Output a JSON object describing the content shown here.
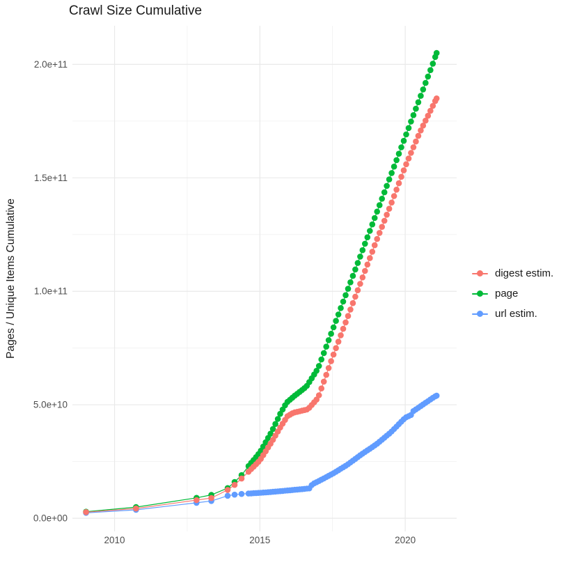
{
  "title": "Crawl Size Cumulative",
  "y_axis_title": "Pages / Unique Items Cumulative",
  "legend": {
    "entries": [
      {
        "label": "digest estim.",
        "color": "#F8766D"
      },
      {
        "label": "page",
        "color": "#00BA38"
      },
      {
        "label": "url estim.",
        "color": "#619CFF"
      }
    ]
  },
  "chart_data": {
    "type": "scatter",
    "title": "Crawl Size Cumulative",
    "xlabel": "",
    "ylabel": "Pages / Unique Items Cumulative",
    "legend_position": "right",
    "grid": "major+minor",
    "xlim": [
      2008.55,
      2021.77
    ],
    "ylim_e9": [
      -5.8,
      217
    ],
    "x_axis": {
      "major_ticks": [
        {
          "v": 2010,
          "label": "2010"
        },
        {
          "v": 2015,
          "label": "2015"
        },
        {
          "v": 2020,
          "label": "2020"
        }
      ],
      "minor_values": [
        2012.5,
        2017.5
      ]
    },
    "y_axis": {
      "major_ticks": [
        {
          "v_e9": 0,
          "label": "0.0e+00"
        },
        {
          "v_e9": 50,
          "label": "5.0e+10"
        },
        {
          "v_e9": 100,
          "label": "1.0e+11"
        },
        {
          "v_e9": 150,
          "label": "1.5e+11"
        },
        {
          "v_e9": 200,
          "label": "2.0e+11"
        }
      ],
      "minor_values_e9": [
        25,
        75,
        125,
        175
      ]
    },
    "sampling": {
      "sparse_x": [
        2009.02,
        2010.74,
        2012.82,
        2013.33,
        2013.89,
        2014.13,
        2014.37,
        2014.61
      ],
      "dense_start": 2014.7,
      "dense_end": 2021.08,
      "dense_step": 0.08333
    },
    "series": [
      {
        "name": "url estim.",
        "color": "#619CFF",
        "anchors_e9": [
          [
            2009.02,
            2.4
          ],
          [
            2010.74,
            3.7
          ],
          [
            2012.82,
            6.8
          ],
          [
            2013.33,
            7.6
          ],
          [
            2013.89,
            9.9
          ],
          [
            2014.13,
            10.4
          ],
          [
            2014.37,
            10.7
          ],
          [
            2014.61,
            10.9
          ],
          [
            2015.0,
            11.2
          ],
          [
            2015.5,
            11.7
          ],
          [
            2016.0,
            12.3
          ],
          [
            2016.5,
            12.9
          ],
          [
            2016.72,
            13.2
          ],
          [
            2016.8,
            15.0
          ],
          [
            2017.0,
            16.2
          ],
          [
            2017.5,
            19.6
          ],
          [
            2018.0,
            23.5
          ],
          [
            2018.5,
            28.2
          ],
          [
            2019.0,
            32.5
          ],
          [
            2019.5,
            37.8
          ],
          [
            2020.0,
            44.3
          ],
          [
            2020.2,
            45.5
          ],
          [
            2020.28,
            47.2
          ],
          [
            2020.6,
            50.0
          ],
          [
            2021.0,
            53.5
          ],
          [
            2021.08,
            54.0
          ]
        ]
      },
      {
        "name": "page",
        "color": "#00BA38",
        "anchors_e9": [
          [
            2009.02,
            2.9
          ],
          [
            2010.74,
            4.9
          ],
          [
            2012.82,
            9.0
          ],
          [
            2013.33,
            10.3
          ],
          [
            2013.89,
            13.3
          ],
          [
            2014.13,
            16.0
          ],
          [
            2014.37,
            19.0
          ],
          [
            2014.61,
            23.0
          ],
          [
            2015.0,
            29.0
          ],
          [
            2015.4,
            38.0
          ],
          [
            2015.7,
            46.0
          ],
          [
            2015.92,
            51.0
          ],
          [
            2016.2,
            54.0
          ],
          [
            2016.6,
            58.0
          ],
          [
            2016.8,
            62.0
          ],
          [
            2017.0,
            66.0
          ],
          [
            2017.5,
            83.0
          ],
          [
            2018.0,
            100.0
          ],
          [
            2018.5,
            117.0
          ],
          [
            2019.0,
            134.0
          ],
          [
            2019.5,
            151.0
          ],
          [
            2020.0,
            168.0
          ],
          [
            2020.5,
            185.0
          ],
          [
            2021.0,
            202.0
          ],
          [
            2021.08,
            205.0
          ]
        ]
      },
      {
        "name": "digest estim.",
        "color": "#F8766D",
        "anchors_e9": [
          [
            2009.02,
            2.7
          ],
          [
            2010.74,
            4.3
          ],
          [
            2012.82,
            8.0
          ],
          [
            2013.33,
            8.9
          ],
          [
            2013.89,
            12.5
          ],
          [
            2014.13,
            14.7
          ],
          [
            2014.37,
            17.5
          ],
          [
            2014.61,
            20.5
          ],
          [
            2015.0,
            25.5
          ],
          [
            2015.4,
            33.5
          ],
          [
            2015.7,
            40.0
          ],
          [
            2015.95,
            45.0
          ],
          [
            2016.15,
            46.5
          ],
          [
            2016.65,
            48.0
          ],
          [
            2017.0,
            53.0
          ],
          [
            2017.5,
            71.0
          ],
          [
            2018.0,
            88.0
          ],
          [
            2018.5,
            105.0
          ],
          [
            2019.0,
            122.0
          ],
          [
            2019.5,
            138.0
          ],
          [
            2020.0,
            155.0
          ],
          [
            2020.5,
            170.0
          ],
          [
            2021.0,
            183.0
          ],
          [
            2021.08,
            185.0
          ]
        ]
      }
    ]
  }
}
